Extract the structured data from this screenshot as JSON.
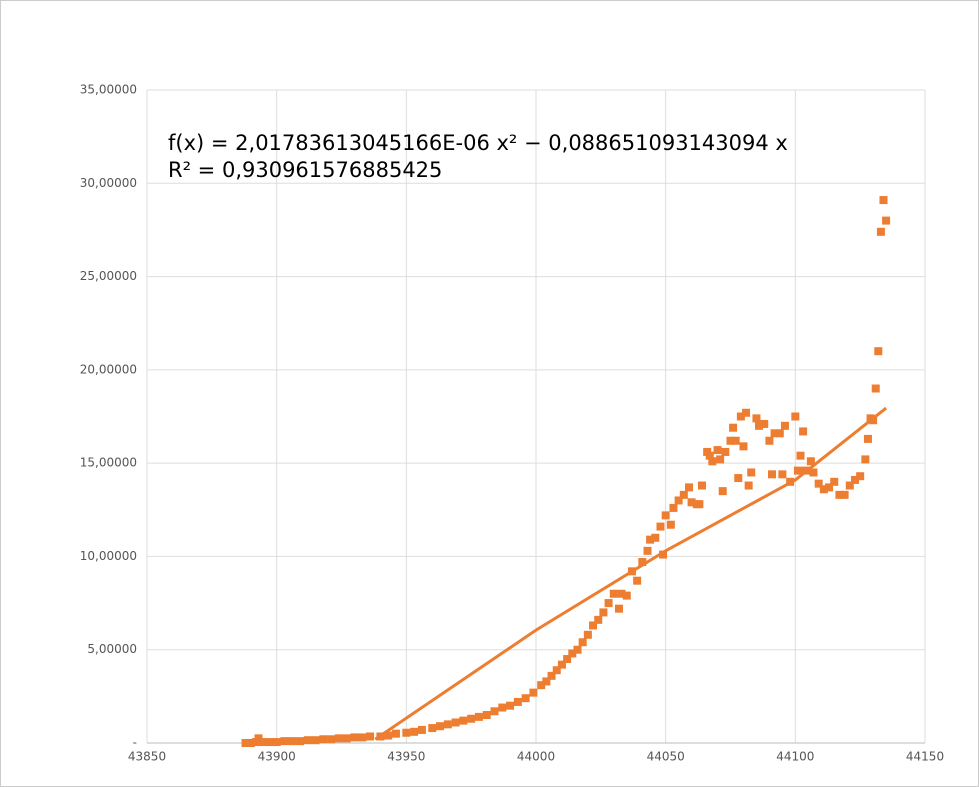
{
  "chart_data": {
    "type": "scatter",
    "annotations": [
      "f(x) = 2,01783613045166E-06 x² − 0,088651093143094 x",
      "R² = 0,930961576885425"
    ],
    "series": [
      {
        "color": "#ed7d31",
        "x": [
          43888,
          43890,
          43892,
          43893,
          43895,
          43898,
          43900,
          43903,
          43906,
          43909,
          43912,
          43915,
          43918,
          43921,
          43924,
          43927,
          43930,
          43933,
          43936,
          43940,
          43943,
          43946,
          43950,
          43953,
          43956,
          43960,
          43963,
          43966,
          43969,
          43972,
          43975,
          43978,
          43981,
          43984,
          43987,
          43990,
          43993,
          43996,
          43999,
          44002,
          44004,
          44006,
          44008,
          44010,
          44012,
          44014,
          44016,
          44018,
          44020,
          44022,
          44024,
          44026,
          44028,
          44030,
          44032,
          44033,
          44035,
          44037,
          44039,
          44041,
          44043,
          44044,
          44046,
          44048,
          44049,
          44050,
          44052,
          44053,
          44055,
          44057,
          44059,
          44060,
          44062,
          44063,
          44064,
          44066,
          44067,
          44068,
          44070,
          44071,
          44072,
          44073,
          44075,
          44076,
          44077,
          44078,
          44079,
          44080,
          44081,
          44082,
          44083,
          44085,
          44086,
          44088,
          44090,
          44091,
          44092,
          44094,
          44095,
          44096,
          44098,
          44100,
          44101,
          44102,
          44103,
          44104,
          44106,
          44107,
          44109,
          44111,
          44113,
          44115,
          44117,
          44119,
          44121,
          44123,
          44125,
          44127,
          44128,
          44129,
          44130,
          44131,
          44132,
          44133,
          44134,
          44135
        ],
        "values": [
          0,
          0,
          0.05,
          0.25,
          0.05,
          0.05,
          0.05,
          0.1,
          0.1,
          0.1,
          0.15,
          0.15,
          0.2,
          0.2,
          0.25,
          0.25,
          0.3,
          0.3,
          0.35,
          0.35,
          0.4,
          0.5,
          0.55,
          0.6,
          0.7,
          0.8,
          0.9,
          1.0,
          1.1,
          1.2,
          1.3,
          1.4,
          1.5,
          1.7,
          1.9,
          2.0,
          2.2,
          2.4,
          2.7,
          3.1,
          3.3,
          3.6,
          3.9,
          4.2,
          4.5,
          4.8,
          5.0,
          5.4,
          5.8,
          6.3,
          6.6,
          7.0,
          7.5,
          8.0,
          7.2,
          8.0,
          7.9,
          9.2,
          8.7,
          9.7,
          10.3,
          10.9,
          11.0,
          11.6,
          10.1,
          12.2,
          11.7,
          12.6,
          13.0,
          13.3,
          13.7,
          12.9,
          12.8,
          12.8,
          13.8,
          15.6,
          15.4,
          15.1,
          15.7,
          15.2,
          13.5,
          15.6,
          16.2,
          16.9,
          16.2,
          14.2,
          17.5,
          15.9,
          17.7,
          13.8,
          14.5,
          17.4,
          17.0,
          17.1,
          16.2,
          14.4,
          16.6,
          16.6,
          14.4,
          17.0,
          14.0,
          17.5,
          14.6,
          15.4,
          16.7,
          14.6,
          15.1,
          14.5,
          13.9,
          13.6,
          13.7,
          14.0,
          13.3,
          13.3,
          13.8,
          14.1,
          14.3,
          15.2,
          16.3,
          17.4,
          17.3,
          19.0,
          21.0,
          27.4,
          29.1,
          28.0
        ]
      },
      {
        "color": "#ed7d31",
        "trendline": true,
        "x": [
          43938,
          44000,
          44050,
          44100,
          44135
        ],
        "values": [
          0.2,
          6.05,
          10.3,
          14.1,
          17.95
        ]
      }
    ],
    "xlim": [
      43850,
      44150
    ],
    "xticks": [
      43850,
      43900,
      43950,
      44000,
      44050,
      44100,
      44150
    ],
    "ylim": [
      0,
      35
    ],
    "yticks": [
      {
        "value": 0,
        "label": "-"
      },
      {
        "value": 5,
        "label": "5,00000"
      },
      {
        "value": 10,
        "label": "10,00000"
      },
      {
        "value": 15,
        "label": "15,00000"
      },
      {
        "value": 20,
        "label": "20,00000"
      },
      {
        "value": 25,
        "label": "25,00000"
      },
      {
        "value": 30,
        "label": "30,00000"
      },
      {
        "value": 35,
        "label": "35,00000"
      }
    ],
    "grid": true
  }
}
